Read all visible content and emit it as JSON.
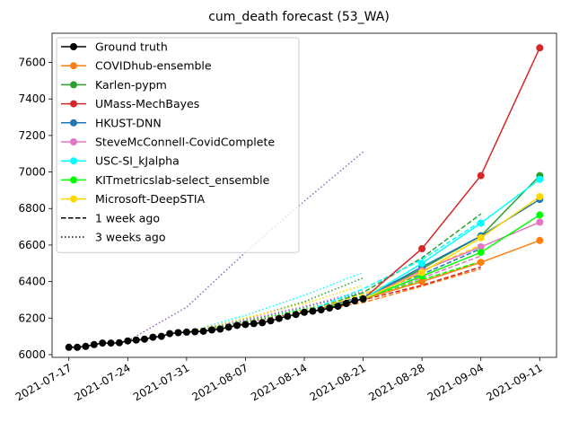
{
  "chart_data": {
    "type": "line",
    "title": "cum_death forecast (53_WA)",
    "xlabel": "",
    "ylabel": "",
    "x_ticks": [
      "2021-07-17",
      "2021-07-24",
      "2021-07-31",
      "2021-08-07",
      "2021-08-14",
      "2021-08-21",
      "2021-08-28",
      "2021-09-04",
      "2021-09-11"
    ],
    "y_ticks": [
      6000,
      6200,
      6400,
      6600,
      6800,
      7000,
      7200,
      7400,
      7600
    ],
    "xlim": [
      "2021-07-15",
      "2021-09-13"
    ],
    "ylim": [
      5985,
      7760
    ],
    "grid": false,
    "legend_position": "top-left",
    "legend": [
      {
        "label": "Ground truth",
        "color": "#000000",
        "style": "solid-marker"
      },
      {
        "label": "COVIDhub-ensemble",
        "color": "#ff7f0e",
        "style": "solid-marker"
      },
      {
        "label": "Karlen-pypm",
        "color": "#2ca02c",
        "style": "solid-marker"
      },
      {
        "label": "UMass-MechBayes",
        "color": "#d62728",
        "style": "solid-marker"
      },
      {
        "label": "HKUST-DNN",
        "color": "#1f77b4",
        "style": "solid-marker"
      },
      {
        "label": "SteveMcConnell-CovidComplete",
        "color": "#e377c2",
        "style": "solid-marker"
      },
      {
        "label": "USC-SI_kJalpha",
        "color": "#00ffff",
        "style": "solid-marker"
      },
      {
        "label": "KITmetricslab-select_ensemble",
        "color": "#00ff00",
        "style": "solid-marker"
      },
      {
        "label": "Microsoft-DeepSTIA",
        "color": "#ffd700",
        "style": "solid-marker"
      },
      {
        "label": "1 week ago",
        "color": "#000000",
        "style": "dashed"
      },
      {
        "label": "3 weeks ago",
        "color": "#000000",
        "style": "dotted"
      }
    ],
    "ground_truth": {
      "color": "#000000",
      "points": [
        [
          "2021-07-17",
          6040
        ],
        [
          "2021-07-18",
          6040
        ],
        [
          "2021-07-19",
          6045
        ],
        [
          "2021-07-20",
          6055
        ],
        [
          "2021-07-21",
          6063
        ],
        [
          "2021-07-22",
          6063
        ],
        [
          "2021-07-23",
          6065
        ],
        [
          "2021-07-24",
          6075
        ],
        [
          "2021-07-25",
          6080
        ],
        [
          "2021-07-26",
          6085
        ],
        [
          "2021-07-27",
          6095
        ],
        [
          "2021-07-28",
          6100
        ],
        [
          "2021-07-29",
          6115
        ],
        [
          "2021-07-30",
          6120
        ],
        [
          "2021-07-31",
          6123
        ],
        [
          "2021-08-01",
          6125
        ],
        [
          "2021-08-02",
          6128
        ],
        [
          "2021-08-03",
          6135
        ],
        [
          "2021-08-04",
          6140
        ],
        [
          "2021-08-05",
          6150
        ],
        [
          "2021-08-06",
          6160
        ],
        [
          "2021-08-07",
          6165
        ],
        [
          "2021-08-08",
          6170
        ],
        [
          "2021-08-09",
          6175
        ],
        [
          "2021-08-10",
          6185
        ],
        [
          "2021-08-11",
          6198
        ],
        [
          "2021-08-12",
          6210
        ],
        [
          "2021-08-13",
          6220
        ],
        [
          "2021-08-14",
          6232
        ],
        [
          "2021-08-15",
          6238
        ],
        [
          "2021-08-16",
          6245
        ],
        [
          "2021-08-17",
          6255
        ],
        [
          "2021-08-18",
          6265
        ],
        [
          "2021-08-19",
          6280
        ],
        [
          "2021-08-20",
          6295
        ],
        [
          "2021-08-21",
          6305
        ]
      ]
    },
    "forecasts": [
      {
        "name": "COVIDhub-ensemble",
        "color": "#ff7f0e",
        "current": [
          [
            "2021-08-21",
            6305
          ],
          [
            "2021-08-28",
            6400
          ],
          [
            "2021-09-04",
            6505
          ],
          [
            "2021-09-11",
            6625
          ]
        ],
        "week_ago": [
          [
            "2021-08-14",
            6232
          ],
          [
            "2021-08-21",
            6285
          ],
          [
            "2021-08-28",
            6375
          ],
          [
            "2021-09-04",
            6470
          ]
        ],
        "three_weeks_ago": [
          [
            "2021-07-31",
            6123
          ],
          [
            "2021-08-07",
            6180
          ],
          [
            "2021-08-14",
            6245
          ],
          [
            "2021-08-21",
            6310
          ]
        ]
      },
      {
        "name": "Karlen-pypm",
        "color": "#2ca02c",
        "current": [
          [
            "2021-08-21",
            6305
          ],
          [
            "2021-08-28",
            6470
          ],
          [
            "2021-09-04",
            6650
          ],
          [
            "2021-09-11",
            6980
          ]
        ],
        "week_ago": [
          [
            "2021-08-14",
            6232
          ],
          [
            "2021-08-21",
            6340
          ],
          [
            "2021-08-28",
            6530
          ],
          [
            "2021-09-04",
            6770
          ]
        ],
        "three_weeks_ago": [
          [
            "2021-07-31",
            6123
          ],
          [
            "2021-08-07",
            6195
          ],
          [
            "2021-08-14",
            6290
          ],
          [
            "2021-08-21",
            6420
          ]
        ]
      },
      {
        "name": "UMass-MechBayes",
        "color": "#d62728",
        "current": [
          [
            "2021-08-21",
            6305
          ],
          [
            "2021-08-28",
            6580
          ],
          [
            "2021-09-04",
            6980
          ],
          [
            "2021-09-11",
            7680
          ]
        ],
        "week_ago": [
          [
            "2021-08-14",
            6232
          ],
          [
            "2021-08-21",
            6300
          ],
          [
            "2021-08-28",
            6380
          ],
          [
            "2021-09-04",
            6480
          ]
        ],
        "three_weeks_ago": [
          [
            "2021-07-31",
            6123
          ],
          [
            "2021-08-07",
            6175
          ],
          [
            "2021-08-14",
            6235
          ],
          [
            "2021-08-21",
            6300
          ]
        ]
      },
      {
        "name": "HKUST-DNN",
        "color": "#1f77b4",
        "current": [
          [
            "2021-08-21",
            6305
          ],
          [
            "2021-08-28",
            6480
          ],
          [
            "2021-09-04",
            6650
          ],
          [
            "2021-09-11",
            6850
          ]
        ],
        "week_ago": [
          [
            "2021-08-14",
            6232
          ],
          [
            "2021-08-21",
            6320
          ],
          [
            "2021-08-28",
            6440
          ],
          [
            "2021-09-04",
            6580
          ]
        ],
        "three_weeks_ago": [
          [
            "2021-07-31",
            6123
          ],
          [
            "2021-08-07",
            6185
          ],
          [
            "2021-08-14",
            6260
          ],
          [
            "2021-08-21",
            6340
          ]
        ]
      },
      {
        "name": "SteveMcConnell-CovidComplete",
        "color": "#e377c2",
        "current": [
          [
            "2021-08-21",
            6305
          ],
          [
            "2021-08-28",
            6460
          ],
          [
            "2021-09-04",
            6590
          ],
          [
            "2021-09-11",
            6725
          ]
        ],
        "week_ago": [
          [
            "2021-08-14",
            6232
          ],
          [
            "2021-08-21",
            6310
          ],
          [
            "2021-08-28",
            6420
          ],
          [
            "2021-09-04",
            6540
          ]
        ],
        "three_weeks_ago": [
          [
            "2021-07-31",
            6123
          ],
          [
            "2021-08-07",
            6190
          ],
          [
            "2021-08-14",
            6265
          ],
          [
            "2021-08-21",
            6350
          ]
        ]
      },
      {
        "name": "USC-SI_kJalpha",
        "color": "#00ffff",
        "current": [
          [
            "2021-08-21",
            6305
          ],
          [
            "2021-08-28",
            6500
          ],
          [
            "2021-09-04",
            6720
          ],
          [
            "2021-09-11",
            6960
          ]
        ],
        "week_ago": [
          [
            "2021-08-14",
            6232
          ],
          [
            "2021-08-21",
            6360
          ],
          [
            "2021-08-28",
            6520
          ],
          [
            "2021-09-04",
            6730
          ]
        ],
        "three_weeks_ago": [
          [
            "2021-07-31",
            6123
          ],
          [
            "2021-08-07",
            6215
          ],
          [
            "2021-08-14",
            6325
          ],
          [
            "2021-08-21",
            6450
          ]
        ]
      },
      {
        "name": "KITmetricslab-select_ensemble",
        "color": "#00ff00",
        "current": [
          [
            "2021-08-21",
            6305
          ],
          [
            "2021-08-28",
            6430
          ],
          [
            "2021-09-04",
            6560
          ],
          [
            "2021-09-11",
            6765
          ]
        ],
        "week_ago": [
          [
            "2021-08-14",
            6232
          ],
          [
            "2021-08-21",
            6305
          ],
          [
            "2021-08-28",
            6410
          ],
          [
            "2021-09-04",
            6510
          ]
        ],
        "three_weeks_ago": [
          [
            "2021-07-31",
            6123
          ],
          [
            "2021-08-07",
            6180
          ],
          [
            "2021-08-14",
            6250
          ],
          [
            "2021-08-21",
            6320
          ]
        ]
      },
      {
        "name": "Microsoft-DeepSTIA",
        "color": "#ffd700",
        "current": [
          [
            "2021-08-21",
            6305
          ],
          [
            "2021-08-28",
            6450
          ],
          [
            "2021-09-04",
            6640
          ],
          [
            "2021-09-11",
            6865
          ]
        ],
        "week_ago": [
          [
            "2021-08-14",
            6232
          ],
          [
            "2021-08-21",
            6330
          ],
          [
            "2021-08-28",
            6460
          ],
          [
            "2021-09-04",
            6600
          ]
        ],
        "three_weeks_ago": [
          [
            "2021-07-31",
            6123
          ],
          [
            "2021-08-07",
            6200
          ],
          [
            "2021-08-14",
            6280
          ],
          [
            "2021-08-21",
            6380
          ]
        ]
      }
    ],
    "extra_dotted": {
      "color": "#9467bd",
      "points": [
        [
          "2021-07-24",
          6075
        ],
        [
          "2021-07-31",
          6260
        ],
        [
          "2021-08-07",
          6560
        ],
        [
          "2021-08-14",
          6840
        ],
        [
          "2021-08-21",
          7110
        ]
      ]
    }
  }
}
